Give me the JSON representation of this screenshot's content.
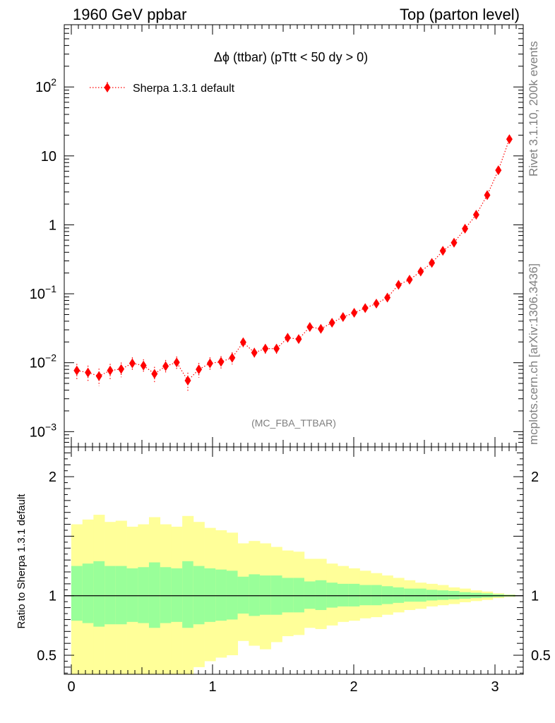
{
  "header": {
    "left": "1960 GeV ppbar",
    "right": "Top (parton level)"
  },
  "side_labels": {
    "rivet": "Rivet 3.1.10,  200k events",
    "mcplots": "mcplots.cern.ch [arXiv:1306.3436]"
  },
  "chart_data": [
    {
      "type": "scatter",
      "title": "Δϕ (ttbar) (pTtt < 50 dy > 0)",
      "annotation": "(MC_FBA_TTBAR)",
      "log_y": true,
      "xlim": [
        -0.05,
        3.2
      ],
      "ylim": [
        0.0006,
        800
      ],
      "y_ticks": [
        {
          "value": 0.001,
          "base": "10",
          "exp": "−3"
        },
        {
          "value": 0.01,
          "base": "10",
          "exp": "−2"
        },
        {
          "value": 0.1,
          "base": "10",
          "exp": "−1"
        },
        {
          "value": 1,
          "base": "1",
          "exp": ""
        },
        {
          "value": 10,
          "base": "10",
          "exp": ""
        },
        {
          "value": 100,
          "base": "10",
          "exp": "2"
        }
      ],
      "legend": {
        "position": "top-left",
        "entry": "Sherpa 1.3.1 default"
      },
      "series": [
        {
          "name": "Sherpa 1.3.1 default",
          "color": "#ff0000",
          "x": [
            0.039,
            0.118,
            0.196,
            0.275,
            0.353,
            0.432,
            0.511,
            0.589,
            0.668,
            0.746,
            0.825,
            0.903,
            0.982,
            1.06,
            1.139,
            1.217,
            1.296,
            1.374,
            1.453,
            1.532,
            1.61,
            1.689,
            1.767,
            1.846,
            1.924,
            2.003,
            2.081,
            2.16,
            2.238,
            2.317,
            2.395,
            2.474,
            2.553,
            2.631,
            2.71,
            2.788,
            2.867,
            2.945,
            3.024,
            3.102
          ],
          "y": [
            0.0077,
            0.0072,
            0.0064,
            0.0077,
            0.0081,
            0.0098,
            0.0091,
            0.0069,
            0.0089,
            0.0101,
            0.0055,
            0.008,
            0.0098,
            0.0103,
            0.0118,
            0.0198,
            0.014,
            0.016,
            0.016,
            0.023,
            0.022,
            0.033,
            0.031,
            0.038,
            0.046,
            0.053,
            0.062,
            0.072,
            0.088,
            0.135,
            0.16,
            0.21,
            0.28,
            0.42,
            0.55,
            0.88,
            1.4,
            2.7,
            6.2,
            17.5
          ],
          "err_rel": [
            0.25,
            0.26,
            0.28,
            0.25,
            0.24,
            0.22,
            0.23,
            0.26,
            0.23,
            0.22,
            0.3,
            0.24,
            0.22,
            0.21,
            0.2,
            0.15,
            0.17,
            0.16,
            0.16,
            0.14,
            0.14,
            0.11,
            0.12,
            0.1,
            0.09,
            0.09,
            0.08,
            0.08,
            0.07,
            0.06,
            0.05,
            0.05,
            0.04,
            0.035,
            0.03,
            0.025,
            0.02,
            0.015,
            0.01,
            0.006
          ]
        }
      ]
    },
    {
      "type": "area",
      "ylabel": "Ratio to Sherpa 1.3.1 default",
      "xlim": [
        -0.05,
        3.2
      ],
      "ylim": [
        0.34,
        2.25
      ],
      "x_ticks": [
        0,
        1,
        2,
        3
      ],
      "y_ticks": [
        0.5,
        1,
        2
      ],
      "reference_line": 1,
      "bin_width": 0.0785,
      "bands": {
        "stat_color": "#99ff99",
        "total_color": "#ffff99",
        "stat_lo": [
          0.79,
          0.77,
          0.74,
          0.76,
          0.76,
          0.78,
          0.77,
          0.73,
          0.77,
          0.78,
          0.73,
          0.76,
          0.78,
          0.79,
          0.8,
          0.85,
          0.83,
          0.84,
          0.84,
          0.86,
          0.86,
          0.89,
          0.88,
          0.9,
          0.91,
          0.91,
          0.92,
          0.92,
          0.93,
          0.94,
          0.95,
          0.95,
          0.96,
          0.965,
          0.97,
          0.975,
          0.98,
          0.985,
          0.99,
          0.994
        ],
        "stat_hi": [
          1.25,
          1.27,
          1.29,
          1.25,
          1.25,
          1.23,
          1.24,
          1.28,
          1.24,
          1.23,
          1.29,
          1.25,
          1.23,
          1.22,
          1.21,
          1.16,
          1.18,
          1.17,
          1.17,
          1.15,
          1.15,
          1.12,
          1.13,
          1.11,
          1.1,
          1.1,
          1.09,
          1.09,
          1.08,
          1.07,
          1.06,
          1.06,
          1.05,
          1.045,
          1.04,
          1.03,
          1.025,
          1.02,
          1.012,
          1.007
        ],
        "total_lo": [
          0.34,
          0.34,
          0.34,
          0.34,
          0.34,
          0.34,
          0.34,
          0.34,
          0.34,
          0.34,
          0.34,
          0.4,
          0.45,
          0.48,
          0.5,
          0.62,
          0.58,
          0.55,
          0.61,
          0.66,
          0.67,
          0.73,
          0.72,
          0.75,
          0.78,
          0.79,
          0.81,
          0.82,
          0.84,
          0.86,
          0.88,
          0.89,
          0.91,
          0.92,
          0.93,
          0.945,
          0.955,
          0.965,
          0.98,
          0.99
        ],
        "total_hi": [
          1.6,
          1.64,
          1.68,
          1.62,
          1.63,
          1.58,
          1.6,
          1.66,
          1.6,
          1.58,
          1.67,
          1.62,
          1.57,
          1.55,
          1.53,
          1.44,
          1.46,
          1.44,
          1.41,
          1.38,
          1.37,
          1.31,
          1.31,
          1.27,
          1.25,
          1.23,
          1.21,
          1.19,
          1.17,
          1.15,
          1.13,
          1.11,
          1.1,
          1.09,
          1.07,
          1.06,
          1.045,
          1.035,
          1.02,
          1.01
        ]
      }
    }
  ]
}
